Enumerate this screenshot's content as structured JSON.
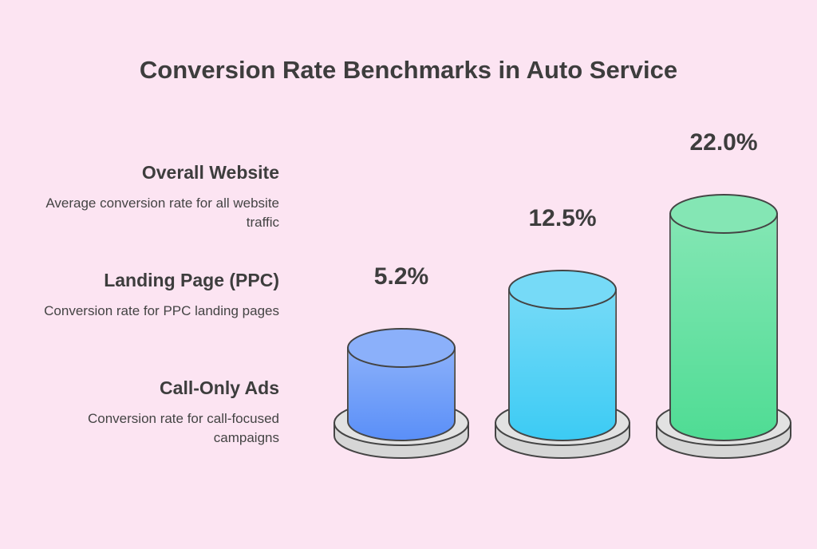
{
  "chart_data": {
    "type": "bar",
    "title": "Conversion Rate Benchmarks in Auto Service",
    "categories": [
      "Call-Only Ads",
      "Landing Page (PPC)",
      "Overall Website"
    ],
    "descriptions": [
      "Conversion rate for call-focused campaigns",
      "Conversion rate for PPC landing pages",
      "Average conversion rate for all website traffic"
    ],
    "values": [
      5.2,
      12.5,
      22.0
    ],
    "value_labels": [
      "5.2%",
      "12.5%",
      "22.0%"
    ],
    "colors": [
      "#5a8ff8",
      "#3ccbf4",
      "#4fdc94"
    ]
  }
}
